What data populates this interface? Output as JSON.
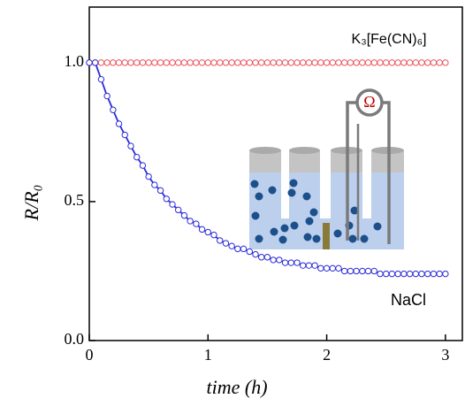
{
  "chart_data": {
    "type": "line",
    "x_label": "time (h)",
    "y_label": "R/R₀",
    "x": [
      0,
      0.05,
      0.1,
      0.15,
      0.2,
      0.25,
      0.3,
      0.35,
      0.4,
      0.45,
      0.5,
      0.55,
      0.6,
      0.65,
      0.7,
      0.75,
      0.8,
      0.85,
      0.9,
      0.95,
      1,
      1.05,
      1.1,
      1.15,
      1.2,
      1.25,
      1.3,
      1.35,
      1.4,
      1.45,
      1.5,
      1.55,
      1.6,
      1.65,
      1.7,
      1.75,
      1.8,
      1.85,
      1.9,
      1.95,
      2,
      2.05,
      2.1,
      2.15,
      2.2,
      2.25,
      2.3,
      2.35,
      2.4,
      2.45,
      2.5,
      2.55,
      2.6,
      2.65,
      2.7,
      2.75,
      2.8,
      2.85,
      2.9,
      2.95,
      3
    ],
    "series": [
      {
        "name": "K₃[Fe(CN)₆]",
        "color": "#e8555a",
        "line": false,
        "values": [
          1,
          1,
          1,
          1,
          1,
          1,
          1,
          1,
          1,
          1,
          1,
          1,
          1,
          1,
          1,
          1,
          1,
          1,
          1,
          1,
          1,
          1,
          1,
          1,
          1,
          1,
          1,
          1,
          1,
          1,
          1,
          1,
          1,
          1,
          1,
          1,
          1,
          1,
          1,
          1,
          1,
          1,
          1,
          1,
          1,
          1,
          1,
          1,
          1,
          1,
          1,
          1,
          1,
          1,
          1,
          1,
          1,
          1,
          1,
          1,
          1
        ]
      },
      {
        "name": "NaCl",
        "color": "#2b2bd9",
        "line": true,
        "values": [
          1,
          1,
          0.94,
          0.88,
          0.83,
          0.78,
          0.74,
          0.7,
          0.66,
          0.63,
          0.59,
          0.56,
          0.54,
          0.51,
          0.49,
          0.47,
          0.45,
          0.43,
          0.42,
          0.4,
          0.39,
          0.38,
          0.36,
          0.35,
          0.34,
          0.33,
          0.33,
          0.32,
          0.31,
          0.3,
          0.3,
          0.29,
          0.29,
          0.28,
          0.28,
          0.28,
          0.27,
          0.27,
          0.27,
          0.26,
          0.26,
          0.26,
          0.26,
          0.25,
          0.25,
          0.25,
          0.25,
          0.25,
          0.25,
          0.24,
          0.24,
          0.24,
          0.24,
          0.24,
          0.24,
          0.24,
          0.24,
          0.24,
          0.24,
          0.24,
          0.24
        ]
      }
    ],
    "inset_label": "Ω",
    "xlim": [
      0,
      3.15
    ],
    "ylim": [
      0,
      1.2
    ],
    "xticks": [
      0,
      1,
      2,
      3
    ],
    "yticks": [
      {
        "value": 0,
        "label": "0.0"
      },
      {
        "value": 0.5,
        "label": "0.5"
      },
      {
        "value": 1,
        "label": "1.0"
      }
    ]
  }
}
